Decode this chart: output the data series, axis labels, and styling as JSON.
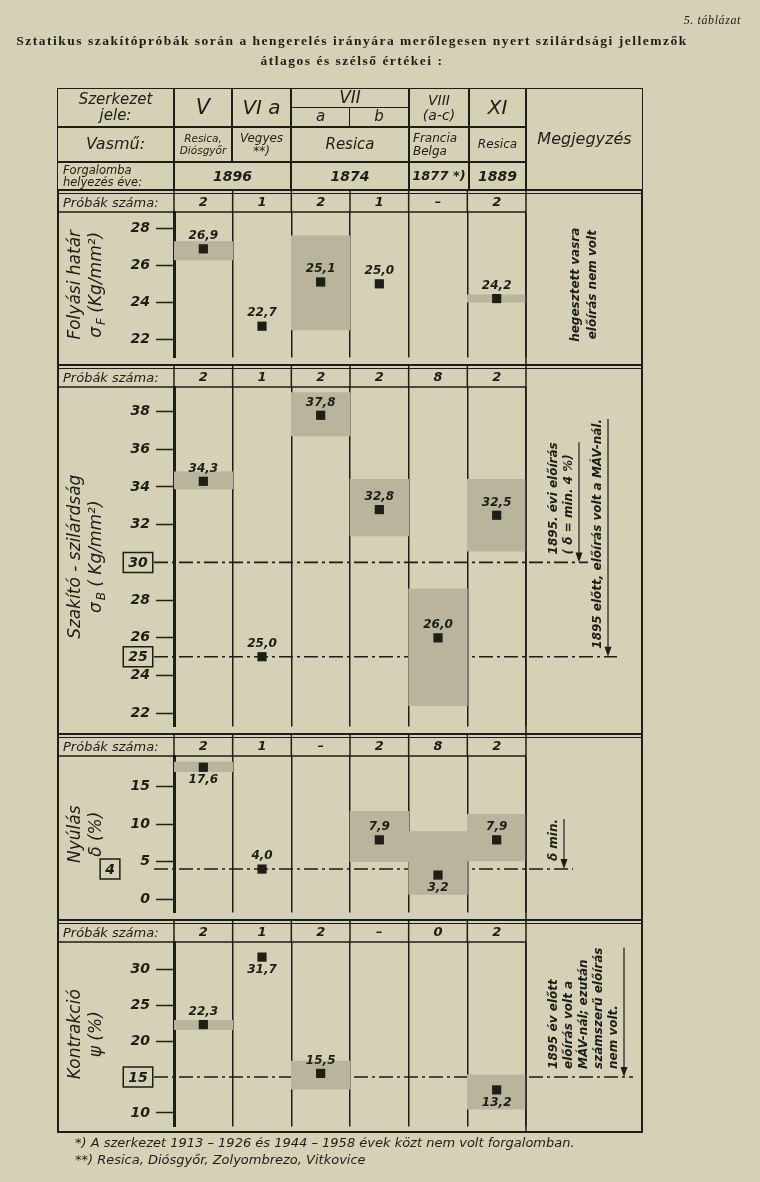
{
  "chart_data": [
    {
      "type": "bar",
      "title": "Sztatikus szakítópróbák során a hengerelés irányára merőlegesen nyert szilárdsági jellemzők átlagos és szélső értékei :",
      "annotations": [
        "5. táblázat",
        "Szerkezet jele:",
        "V",
        "VI a",
        "VII",
        "a",
        "b",
        "VIII (a-c)",
        "XI",
        "Megjegyzés",
        "Vasmű:",
        "Resica, Diósgyőr",
        "Vegyes **)",
        "Resica",
        "Francia Belga",
        "Resica",
        "Forgalomba helyezés éve:",
        "1896",
        "1874",
        "1877 *)",
        "1889",
        "hegesztett vasra\nelőírás nem volt"
      ],
      "categories": [
        "2",
        "1",
        "2",
        "1",
        "–",
        "2"
      ],
      "xlabel": "Próbák száma:",
      "ylabel": "Folyási határ\nσ$_{F}$ (Kg/mm²)",
      "ylim": [
        21,
        28.9
      ],
      "yticks": [
        22,
        24,
        26,
        28
      ],
      "grid": "x",
      "series": [
        {
          "color": "#b9b59d",
          "base": [
            26.3,
            null,
            22.5,
            null,
            null,
            24.0
          ],
          "values": [
            1.0,
            null,
            5.1,
            null,
            null,
            0.4
          ]
        },
        {
          "type": "scatter",
          "marker": "square",
          "color": "#1e1d17",
          "values": [
            26.9,
            22.7,
            25.1,
            25.0,
            null,
            24.2
          ],
          "value_labels": [
            "26,9",
            "22,7",
            "25,1",
            "25,0",
            null,
            "24,2"
          ]
        }
      ]
    },
    {
      "type": "bar",
      "categories": [
        "2",
        "1",
        "2",
        "2",
        "8",
        "2"
      ],
      "xlabel": "Próbák száma:",
      "ylabel": "Szakító - szilárdság\nσ$_{B}$ ( Kg/mm²)",
      "ylim": [
        21.3,
        39.3
      ],
      "yticks": [
        22,
        24,
        26,
        28,
        32,
        34,
        36,
        38
      ],
      "grid": "x",
      "series": [
        {
          "color": "#b9b59d",
          "base": [
            33.9,
            null,
            36.7,
            31.4,
            22.4,
            30.6
          ],
          "values": [
            0.9,
            null,
            2.3,
            3.0,
            6.2,
            3.8
          ]
        },
        {
          "type": "scatter",
          "marker": "square",
          "color": "#1e1d17",
          "values": [
            34.3,
            25.0,
            37.8,
            32.8,
            26.0,
            32.5
          ],
          "value_labels": [
            "34,3",
            "25,0",
            "37,8",
            "32,8",
            "26,0",
            "32,5"
          ]
        }
      ],
      "ref_lines": [
        {
          "axis": "y",
          "value": 30,
          "label": "30",
          "line_style": "dashed"
        },
        {
          "axis": "y",
          "value": 25,
          "label": "25",
          "line_style": "dashed"
        }
      ],
      "annotations": [
        {
          "text": "1895. évi előírás\n( δ = min. 4 %)",
          "y": 30
        },
        {
          "text": "1895 előtt, előírás volt a MÁV-nál.",
          "y": 25
        }
      ]
    },
    {
      "type": "bar",
      "categories": [
        "2",
        "1",
        "–",
        "2",
        "8",
        "2"
      ],
      "xlabel": "Próbák száma:",
      "ylabel": "Nyúlás\nδ (%)",
      "ylim": [
        -1.8,
        19.1
      ],
      "yticks": [
        0,
        5,
        10,
        15
      ],
      "grid": "x",
      "series": [
        {
          "color": "#b9b59d",
          "base": [
            17.0,
            null,
            null,
            5.0,
            0.6,
            5.1
          ],
          "values": [
            1.3,
            null,
            null,
            6.7,
            8.4,
            6.2
          ]
        },
        {
          "type": "scatter",
          "marker": "square",
          "color": "#1e1d17",
          "values": [
            17.6,
            4.0,
            null,
            7.9,
            3.2,
            7.9
          ],
          "value_labels": [
            "17,6",
            "4,0",
            null,
            "7,9",
            "3,2",
            "7,9"
          ]
        }
      ],
      "ref_lines": [
        {
          "axis": "y",
          "value": 4,
          "label": "4",
          "line_style": "dashed"
        }
      ],
      "annotations": [
        {
          "text": "δ min.",
          "y": 4
        }
      ]
    },
    {
      "type": "bar",
      "categories": [
        "2",
        "1",
        "2",
        "–",
        "0",
        "2"
      ],
      "xlabel": "Próbák száma:",
      "ylabel": "Kontrakció\nψ (%)",
      "ylim": [
        8.1,
        33.8
      ],
      "yticks": [
        10,
        20,
        25,
        30
      ],
      "grid": "x",
      "series": [
        {
          "color": "#b9b59d",
          "base": [
            21.6,
            null,
            13.3,
            null,
            null,
            10.5
          ],
          "values": [
            1.3,
            null,
            3.9,
            null,
            null,
            4.8
          ]
        },
        {
          "type": "scatter",
          "marker": "square",
          "color": "#1e1d17",
          "values": [
            22.3,
            31.7,
            15.5,
            null,
            null,
            13.2
          ],
          "value_labels": [
            "22,3",
            "31,7",
            "15,5",
            null,
            null,
            "13,2"
          ]
        }
      ],
      "ref_lines": [
        {
          "axis": "y",
          "value": 15,
          "label": "15",
          "line_style": "dashed"
        }
      ],
      "annotations": [
        {
          "text": "1895 év előtt\nelőírás volt a\nMÁV-nál; ezután\nszámszerű előírás\nnem volt.",
          "y": 15
        },
        "*) A szerkezet 1913 – 1926 és 1944 – 1958 évek közt nem volt forgalomban.",
        "**) Resica, Diósgyőr, Zolyombrezo, Vitkovice"
      ]
    }
  ]
}
